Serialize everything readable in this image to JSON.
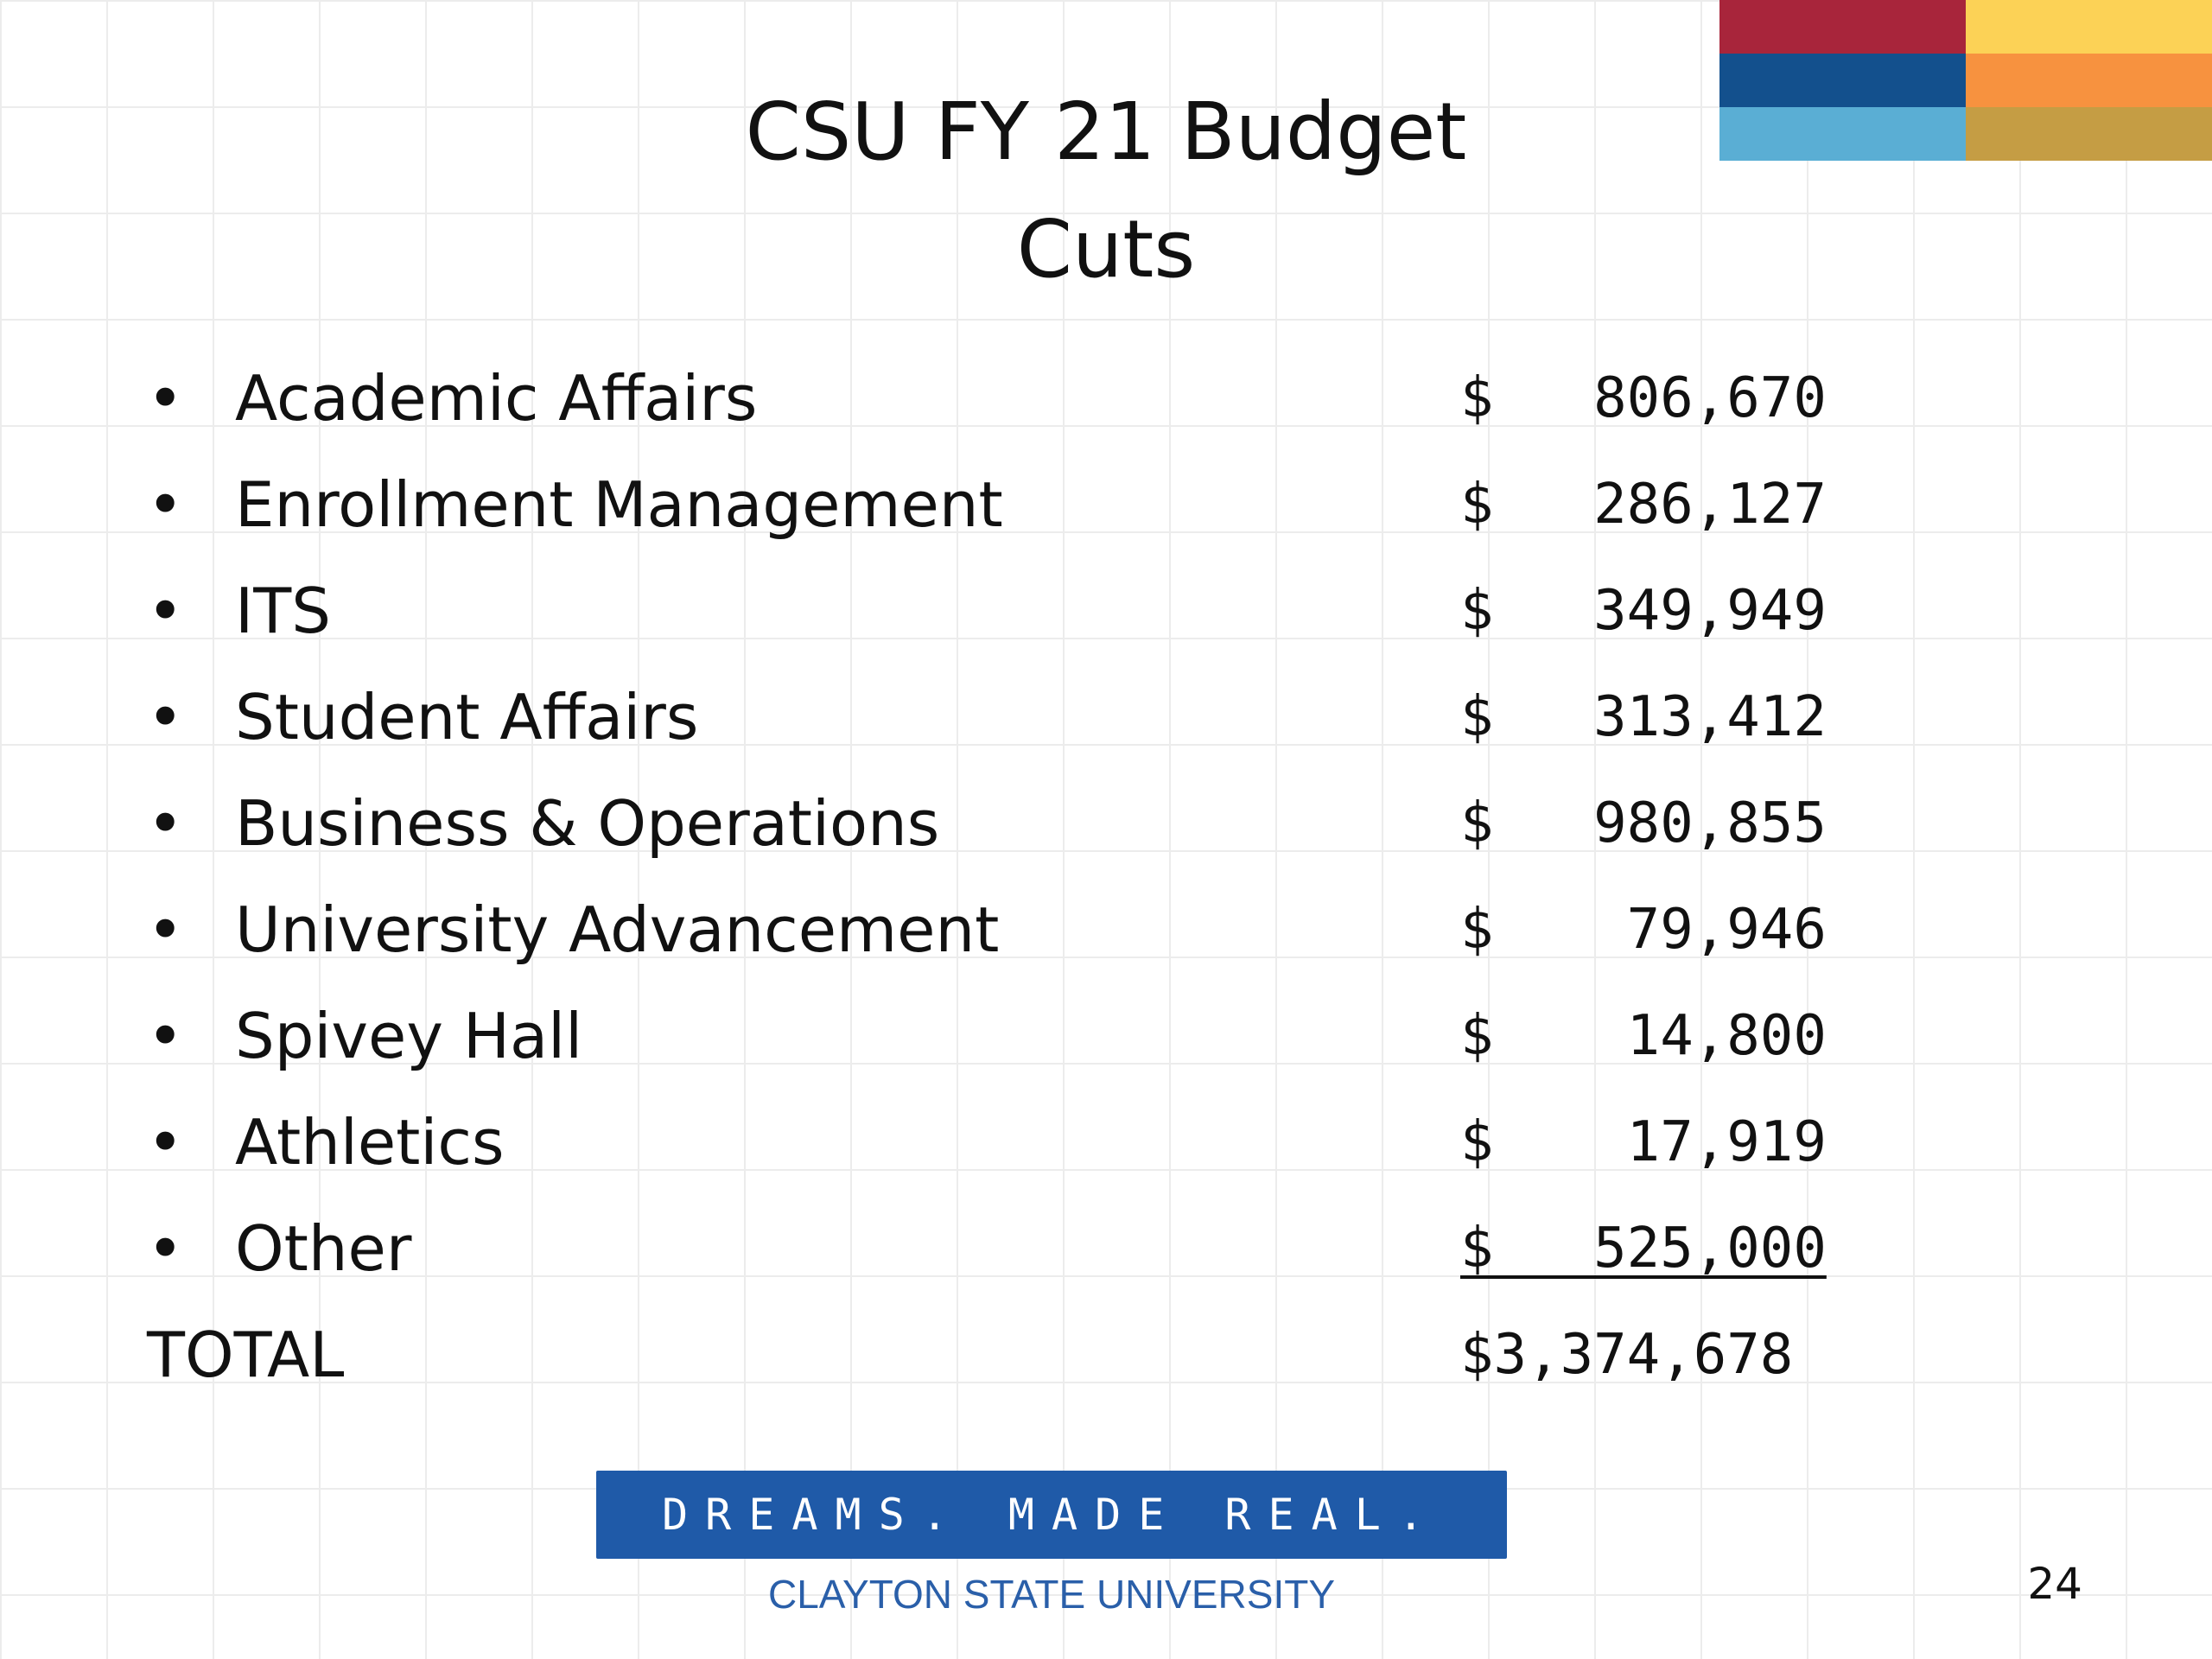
{
  "title": {
    "line1": "CSU FY 21 Budget",
    "line2": "Cuts"
  },
  "items": [
    {
      "bullet": "•",
      "label": "Academic Affairs",
      "amount": "$   806,670"
    },
    {
      "bullet": "•",
      "label": "Enrollment Management",
      "amount": "$   286,127"
    },
    {
      "bullet": "•",
      "label": "ITS",
      "amount": "$   349,949"
    },
    {
      "bullet": "•",
      "label": "Student Affairs",
      "amount": "$   313,412"
    },
    {
      "bullet": "•",
      "label": "Business & Operations",
      "amount": "$   980,855"
    },
    {
      "bullet": "•",
      "label": "University Advancement",
      "amount": "$    79,946"
    },
    {
      "bullet": "•",
      "label": "Spivey Hall",
      "amount": "$    14,800"
    },
    {
      "bullet": "•",
      "label": "Athletics",
      "amount": "$    17,919"
    },
    {
      "bullet": "•",
      "label": "Other",
      "amount": "$   525,000"
    }
  ],
  "total": {
    "label": "TOTAL",
    "amount": "$3,374,678"
  },
  "brand": {
    "tagline": "DREAMS. MADE REAL.",
    "university": "CLAYTON STATE UNIVERSITY"
  },
  "page_number": "24",
  "accent_colors": {
    "red": "#a8253b",
    "yellow": "#fcd256",
    "dark_blue": "#13508d",
    "orange": "#f7923f",
    "light_blue": "#5aaed4",
    "gold": "#c59d44"
  }
}
